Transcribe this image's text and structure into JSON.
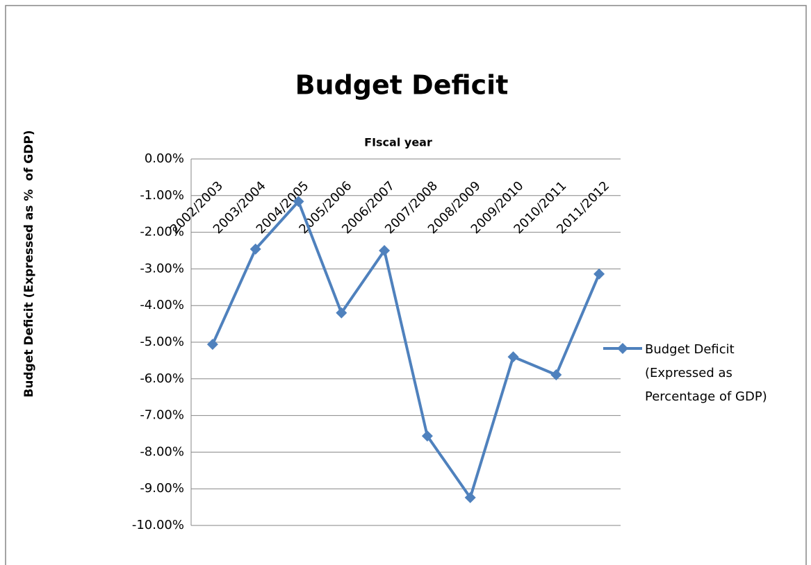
{
  "chart_data": {
    "type": "line",
    "title": "Budget Deficit",
    "x_label": "FIscal year",
    "y_label": "Budget Deficit (Expressed as %  of GDP)",
    "categories": [
      "2002/2003",
      "2003/2004",
      "2004/2005",
      "2005/2006",
      "2006/2007",
      "2007/2008",
      "2008/2009",
      "2009/2010",
      "2010/2011",
      "2011/2012"
    ],
    "series": [
      {
        "name": "Budget Deficit (Expressed as Percentage of GDP)",
        "color": "#4f81bd",
        "values": [
          -5.06,
          -2.46,
          -1.16,
          -4.2,
          -2.5,
          -7.56,
          -9.24,
          -5.4,
          -5.89,
          -3.14
        ]
      }
    ],
    "ylim": [
      -10,
      0
    ],
    "yticks": [
      {
        "value": 0,
        "label": "0.00%"
      },
      {
        "value": -1,
        "label": "-1.00%"
      },
      {
        "value": -2,
        "label": "-2.00%"
      },
      {
        "value": -3,
        "label": "-3.00%"
      },
      {
        "value": -4,
        "label": "-4.00%"
      },
      {
        "value": -5,
        "label": "-5.00%"
      },
      {
        "value": -6,
        "label": "-6.00%"
      },
      {
        "value": -7,
        "label": "-7.00%"
      },
      {
        "value": -8,
        "label": "-8.00%"
      },
      {
        "value": -9,
        "label": "-9.00%"
      },
      {
        "value": -10,
        "label": "-10.00%"
      }
    ],
    "grid": true,
    "legend": "right"
  }
}
